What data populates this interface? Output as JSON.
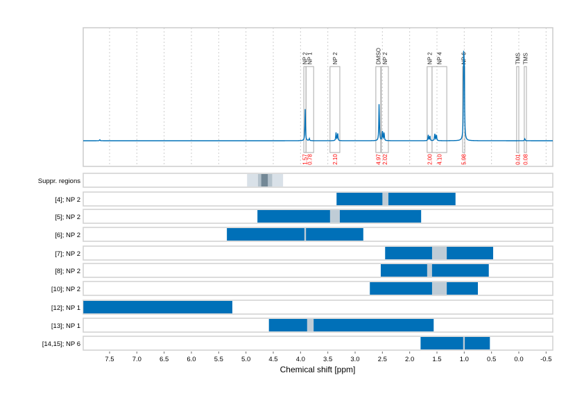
{
  "chart_data": [
    {
      "type": "line",
      "panel": "spectrum",
      "x_reversed": true,
      "xlim": [
        7.98,
        -0.62
      ],
      "grid": true,
      "line_color": "#0070b8",
      "peaks": [
        {
          "ppm": 7.68,
          "height": 0.015
        },
        {
          "ppm": 3.915,
          "height": 0.43
        },
        {
          "ppm": 3.84,
          "height": 0.03
        },
        {
          "ppm": 3.35,
          "height": 0.11
        },
        {
          "ppm": 3.32,
          "height": 0.11
        },
        {
          "ppm": 2.56,
          "height": 0.52
        },
        {
          "ppm": 2.5,
          "height": 0.14
        },
        {
          "ppm": 2.47,
          "height": 0.12
        },
        {
          "ppm": 1.66,
          "height": 0.08
        },
        {
          "ppm": 1.63,
          "height": 0.07
        },
        {
          "ppm": 1.54,
          "height": 0.1
        },
        {
          "ppm": 1.51,
          "height": 0.09
        },
        {
          "ppm": 1.01,
          "height": 1.0
        },
        {
          "ppm": 1.0,
          "height": 0.95
        },
        {
          "ppm": -0.11,
          "height": 0.03
        }
      ],
      "integration_regions": [
        {
          "label": "NP 2",
          "from": 3.94,
          "to": 3.9,
          "integral": "1.57"
        },
        {
          "label": "NP 1",
          "from": 3.9,
          "to": 3.76,
          "integral": "0.78"
        },
        {
          "label": "NP 2",
          "from": 3.46,
          "to": 3.28,
          "integral": "2.10"
        },
        {
          "label": "DMSO",
          "from": 2.62,
          "to": 2.53,
          "integral": "4.97"
        },
        {
          "label": "NP 2",
          "from": 2.52,
          "to": 2.39,
          "integral": "2.02"
        },
        {
          "label": "NP 2",
          "from": 1.68,
          "to": 1.59,
          "integral": "2.00"
        },
        {
          "label": "NP 4",
          "from": 1.59,
          "to": 1.32,
          "integral": "4.10"
        },
        {
          "label": "NP 6",
          "from": 1.03,
          "to": 0.99,
          "integral": "5.98"
        },
        {
          "label": "TMS",
          "from": 0.04,
          "to": 0.0,
          "integral": "0.01"
        },
        {
          "label": "TMS",
          "from": -0.1,
          "to": -0.14,
          "integral": "0.08"
        }
      ],
      "integral_color": "#ff0000"
    },
    {
      "type": "bar",
      "orientation": "horizontal-range",
      "xlabel": "Chemical shift [ppm]",
      "x_reversed": true,
      "xlim": [
        7.98,
        -0.62
      ],
      "ticks": [
        "7.5",
        "7.0",
        "6.5",
        "6.0",
        "5.5",
        "5.0",
        "4.5",
        "4.0",
        "3.5",
        "3.0",
        "2.5",
        "2.0",
        "1.5",
        "1.0",
        "0.5",
        "0.0",
        "-0.5"
      ],
      "bar_color": "#0070b8",
      "gap_color": "#bfccd6",
      "suppression": {
        "label": "Suppr. regions",
        "outer": [
          4.98,
          4.32
        ],
        "middle": [
          4.78,
          4.52
        ],
        "inner": [
          4.72,
          4.6
        ]
      },
      "rows": [
        {
          "label": "[4]; NP 2",
          "range": [
            3.34,
            1.16
          ],
          "gap": [
            2.5,
            2.39
          ]
        },
        {
          "label": "[5]; NP 2",
          "range": [
            4.79,
            1.79
          ],
          "gap": [
            3.46,
            3.28
          ]
        },
        {
          "label": "[6]; NP 2",
          "range": [
            5.35,
            2.85
          ],
          "gap": [
            3.93,
            3.9
          ]
        },
        {
          "label": "[7]; NP 2",
          "range": [
            2.45,
            0.47
          ],
          "gap": [
            1.59,
            1.32
          ]
        },
        {
          "label": "[8]; NP 2",
          "range": [
            2.53,
            0.55
          ],
          "gap": [
            1.68,
            1.59
          ]
        },
        {
          "label": "[10]; NP 2",
          "range": [
            2.73,
            0.75
          ],
          "gap": [
            1.59,
            1.32
          ]
        },
        {
          "label": "[12]; NP 1",
          "range": [
            7.98,
            5.25
          ],
          "gap": null
        },
        {
          "label": "[13]; NP 1",
          "range": [
            4.58,
            1.56
          ],
          "gap": [
            3.88,
            3.76
          ]
        },
        {
          "label": "[14,15]; NP 6",
          "range": [
            1.8,
            0.53
          ],
          "gap": [
            1.02,
            0.99
          ]
        }
      ]
    }
  ]
}
